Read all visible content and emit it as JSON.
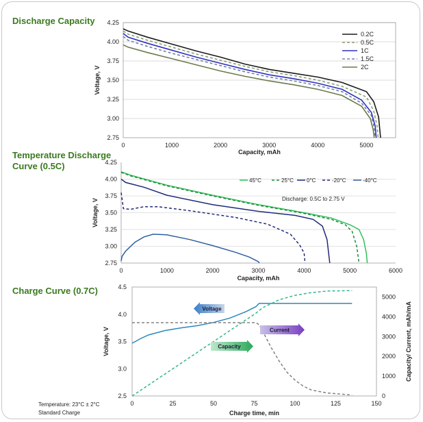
{
  "sections": {
    "discharge_title": "Discharge Capacity",
    "temp_title_line1": "Temperature Discharge",
    "temp_title_line2": "Curve (0.5C)",
    "charge_title": "Charge Curve (0.7C)"
  },
  "footer": {
    "line1": "Temperature:  23°C ±  2°C",
    "line2": "Standard Charge"
  },
  "chart_data": [
    {
      "type": "line",
      "title": "Discharge Capacity",
      "xlabel": "Capacity, mAh",
      "ylabel": "Voltage, V",
      "xlim": [
        0,
        5600
      ],
      "ylim": [
        2.75,
        4.25
      ],
      "xticks": [
        0,
        1000,
        2000,
        3000,
        4000,
        5000
      ],
      "yticks": [
        2.75,
        3.0,
        3.25,
        3.5,
        3.75,
        4.0,
        4.25
      ],
      "legend": "top-right",
      "series": [
        {
          "name": "0.2C",
          "color": "#1a1a1a",
          "dash": "solid",
          "points": [
            [
              0,
              4.17
            ],
            [
              100,
              4.14
            ],
            [
              500,
              4.06
            ],
            [
              1000,
              3.97
            ],
            [
              1500,
              3.88
            ],
            [
              2000,
              3.8
            ],
            [
              2500,
              3.71
            ],
            [
              3000,
              3.64
            ],
            [
              3500,
              3.59
            ],
            [
              4000,
              3.54
            ],
            [
              4500,
              3.47
            ],
            [
              5000,
              3.35
            ],
            [
              5150,
              3.22
            ],
            [
              5250,
              3.02
            ],
            [
              5290,
              2.75
            ]
          ]
        },
        {
          "name": "0.5C",
          "color": "#8aa070",
          "dash": "dashed",
          "points": [
            [
              0,
              4.14
            ],
            [
              100,
              4.1
            ],
            [
              500,
              4.02
            ],
            [
              1000,
              3.93
            ],
            [
              1500,
              3.84
            ],
            [
              2000,
              3.76
            ],
            [
              2500,
              3.68
            ],
            [
              3000,
              3.61
            ],
            [
              3500,
              3.56
            ],
            [
              4000,
              3.5
            ],
            [
              4500,
              3.42
            ],
            [
              5000,
              3.28
            ],
            [
              5150,
              3.1
            ],
            [
              5220,
              2.9
            ],
            [
              5240,
              2.75
            ]
          ]
        },
        {
          "name": "1C",
          "color": "#2f2fc0",
          "dash": "solid",
          "points": [
            [
              0,
              4.11
            ],
            [
              100,
              4.06
            ],
            [
              500,
              3.98
            ],
            [
              1000,
              3.89
            ],
            [
              1500,
              3.8
            ],
            [
              2000,
              3.72
            ],
            [
              2500,
              3.64
            ],
            [
              3000,
              3.57
            ],
            [
              3500,
              3.52
            ],
            [
              4000,
              3.46
            ],
            [
              4500,
              3.38
            ],
            [
              4900,
              3.24
            ],
            [
              5100,
              3.08
            ],
            [
              5180,
              2.9
            ],
            [
              5200,
              2.75
            ]
          ]
        },
        {
          "name": "1.5C",
          "color": "#6f7fb0",
          "dash": "dashed",
          "points": [
            [
              0,
              4.07
            ],
            [
              100,
              4.02
            ],
            [
              500,
              3.94
            ],
            [
              1000,
              3.85
            ],
            [
              1500,
              3.77
            ],
            [
              2000,
              3.69
            ],
            [
              2500,
              3.61
            ],
            [
              3000,
              3.54
            ],
            [
              3500,
              3.49
            ],
            [
              4000,
              3.43
            ],
            [
              4500,
              3.35
            ],
            [
              4900,
              3.2
            ],
            [
              5100,
              3.04
            ],
            [
              5160,
              2.88
            ],
            [
              5180,
              2.75
            ]
          ]
        },
        {
          "name": "2C",
          "color": "#6b7a4a",
          "dash": "solid",
          "points": [
            [
              0,
              3.96
            ],
            [
              100,
              3.93
            ],
            [
              500,
              3.86
            ],
            [
              1000,
              3.78
            ],
            [
              1500,
              3.7
            ],
            [
              2000,
              3.62
            ],
            [
              2500,
              3.55
            ],
            [
              3000,
              3.49
            ],
            [
              3500,
              3.44
            ],
            [
              4000,
              3.38
            ],
            [
              4500,
              3.3
            ],
            [
              4900,
              3.16
            ],
            [
              5080,
              3.0
            ],
            [
              5140,
              2.85
            ],
            [
              5160,
              2.75
            ]
          ]
        }
      ]
    },
    {
      "type": "line",
      "title": "Temperature Discharge Curve (0.5C)",
      "xlabel": "Capacity, mAh",
      "ylabel": "Voltage, V",
      "xlim": [
        0,
        6000
      ],
      "ylim": [
        2.75,
        4.25
      ],
      "xticks": [
        0,
        1000,
        2000,
        3000,
        4000,
        5000,
        6000
      ],
      "yticks": [
        2.75,
        3.0,
        3.25,
        3.5,
        3.75,
        4.0,
        4.25
      ],
      "legend": "top-right",
      "annotation": "Discharge: 0.5C to 2.75 V",
      "series": [
        {
          "name": "45°C",
          "color": "#2fbf5a",
          "dash": "solid",
          "points": [
            [
              0,
              4.11
            ],
            [
              200,
              4.06
            ],
            [
              1000,
              3.91
            ],
            [
              2000,
              3.76
            ],
            [
              3000,
              3.62
            ],
            [
              4000,
              3.5
            ],
            [
              4600,
              3.42
            ],
            [
              5000,
              3.32
            ],
            [
              5200,
              3.25
            ],
            [
              5300,
              3.1
            ],
            [
              5360,
              2.9
            ],
            [
              5380,
              2.75
            ]
          ]
        },
        {
          "name": "25°C",
          "color": "#1f8a3a",
          "dash": "dashed",
          "points": [
            [
              0,
              4.1
            ],
            [
              200,
              4.05
            ],
            [
              1000,
              3.9
            ],
            [
              2000,
              3.75
            ],
            [
              3000,
              3.61
            ],
            [
              4000,
              3.49
            ],
            [
              4600,
              3.4
            ],
            [
              4900,
              3.32
            ],
            [
              5050,
              3.22
            ],
            [
              5150,
              3.0
            ],
            [
              5200,
              2.75
            ]
          ]
        },
        {
          "name": "0°C",
          "color": "#1e2a78",
          "dash": "solid",
          "points": [
            [
              0,
              4.0
            ],
            [
              100,
              3.95
            ],
            [
              500,
              3.88
            ],
            [
              1000,
              3.76
            ],
            [
              2000,
              3.62
            ],
            [
              3000,
              3.52
            ],
            [
              3800,
              3.46
            ],
            [
              4200,
              3.4
            ],
            [
              4400,
              3.3
            ],
            [
              4500,
              3.1
            ],
            [
              4560,
              2.75
            ]
          ]
        },
        {
          "name": "-20°C",
          "color": "#1e2a78",
          "dash": "dashed",
          "points": [
            [
              0,
              3.8
            ],
            [
              50,
              3.56
            ],
            [
              200,
              3.55
            ],
            [
              500,
              3.59
            ],
            [
              800,
              3.59
            ],
            [
              1500,
              3.53
            ],
            [
              2500,
              3.43
            ],
            [
              3200,
              3.33
            ],
            [
              3700,
              3.18
            ],
            [
              3900,
              3.02
            ],
            [
              4000,
              2.9
            ],
            [
              4020,
              2.75
            ]
          ]
        },
        {
          "name": "-40°C",
          "color": "#2f5fa0",
          "dash": "solid",
          "points": [
            [
              0,
              2.78
            ],
            [
              20,
              2.85
            ],
            [
              100,
              2.93
            ],
            [
              300,
              3.06
            ],
            [
              500,
              3.14
            ],
            [
              700,
              3.18
            ],
            [
              1000,
              3.17
            ],
            [
              1500,
              3.1
            ],
            [
              2000,
              3.01
            ],
            [
              2500,
              2.91
            ],
            [
              2800,
              2.84
            ],
            [
              3000,
              2.77
            ],
            [
              3020,
              2.75
            ]
          ]
        }
      ]
    },
    {
      "type": "line",
      "title": "Charge Curve (0.7C)",
      "xlabel": "Charge time, min",
      "ylabel": "Voltage, V",
      "y2label": "Capacity/ Current, mAh/mA",
      "xlim": [
        0,
        150
      ],
      "ylim": [
        2.5,
        4.5
      ],
      "y2lim": [
        0,
        5500
      ],
      "xticks": [
        0,
        25,
        50,
        75,
        100,
        125,
        150
      ],
      "yticks": [
        2.5,
        3.0,
        3.5,
        4.0,
        4.5
      ],
      "y2ticks": [
        0,
        1000,
        2000,
        3000,
        4000,
        5000
      ],
      "annotations": [
        "Voltage",
        "Current",
        "Capacity"
      ],
      "series": [
        {
          "name": "Voltage",
          "axis": "left",
          "color": "#2a86c0",
          "dash": "solid",
          "points": [
            [
              0,
              3.47
            ],
            [
              2,
              3.5
            ],
            [
              5,
              3.55
            ],
            [
              10,
              3.62
            ],
            [
              20,
              3.7
            ],
            [
              30,
              3.75
            ],
            [
              40,
              3.79
            ],
            [
              50,
              3.85
            ],
            [
              60,
              3.93
            ],
            [
              70,
              4.05
            ],
            [
              76,
              4.14
            ],
            [
              78,
              4.2
            ],
            [
              100,
              4.2
            ],
            [
              135,
              4.2
            ]
          ]
        },
        {
          "name": "Capacity",
          "axis": "right",
          "color": "#2fb88a",
          "dash": "dashed",
          "points": [
            [
              0,
              0
            ],
            [
              10,
              550
            ],
            [
              20,
              1100
            ],
            [
              30,
              1650
            ],
            [
              40,
              2200
            ],
            [
              50,
              2750
            ],
            [
              60,
              3300
            ],
            [
              70,
              3850
            ],
            [
              76,
              4180
            ],
            [
              80,
              4450
            ],
            [
              90,
              4850
            ],
            [
              100,
              5080
            ],
            [
              110,
              5220
            ],
            [
              120,
              5300
            ],
            [
              135,
              5320
            ]
          ]
        },
        {
          "name": "Current",
          "axis": "right",
          "color": "#808080",
          "dash": "dashed",
          "points": [
            [
              0,
              3700
            ],
            [
              76,
              3700
            ],
            [
              78,
              3600
            ],
            [
              80,
              3300
            ],
            [
              85,
              2500
            ],
            [
              90,
              1800
            ],
            [
              95,
              1200
            ],
            [
              100,
              800
            ],
            [
              105,
              500
            ],
            [
              110,
              300
            ],
            [
              120,
              150
            ],
            [
              135,
              50
            ]
          ]
        }
      ]
    }
  ]
}
